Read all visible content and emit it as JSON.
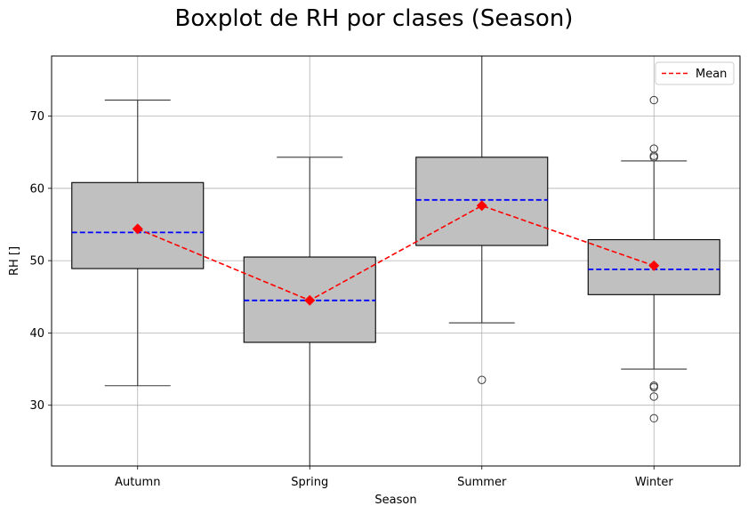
{
  "chart_data": {
    "type": "boxplot",
    "title": "Boxplot de RH por clases (Season)",
    "xlabel": "Season",
    "ylabel": "RH []",
    "ylim": [
      21.6,
      78.3
    ],
    "yticks": [
      30,
      40,
      50,
      60,
      70
    ],
    "grid": true,
    "legend": {
      "position": "top-right",
      "entries": [
        "Mean"
      ]
    },
    "categories": [
      "Autumn",
      "Spring",
      "Summer",
      "Winter"
    ],
    "boxes": [
      {
        "category": "Autumn",
        "whisker_low": 32.7,
        "q1": 48.9,
        "median": 53.9,
        "q3": 60.8,
        "whisker_high": 72.2,
        "mean": 54.4,
        "outliers": []
      },
      {
        "category": "Spring",
        "whisker_low": 21.6,
        "q1": 38.7,
        "median": 44.5,
        "q3": 50.5,
        "whisker_high": 64.3,
        "mean": 44.5,
        "outliers": []
      },
      {
        "category": "Summer",
        "whisker_low": 41.4,
        "q1": 52.1,
        "median": 58.4,
        "q3": 64.3,
        "whisker_high": 78.3,
        "mean": 57.6,
        "outliers": [
          33.5
        ]
      },
      {
        "category": "Winter",
        "whisker_low": 35.0,
        "q1": 45.3,
        "median": 48.8,
        "q3": 52.9,
        "whisker_high": 63.8,
        "mean": 49.3,
        "outliers": [
          72.2,
          65.5,
          64.5,
          64.3,
          32.7,
          32.5,
          31.2,
          28.2
        ]
      }
    ],
    "colors": {
      "box_fill": "#c0c0c0",
      "median": "#0000ff",
      "mean": "#ff0000",
      "grid": "#b0b0b0"
    }
  }
}
